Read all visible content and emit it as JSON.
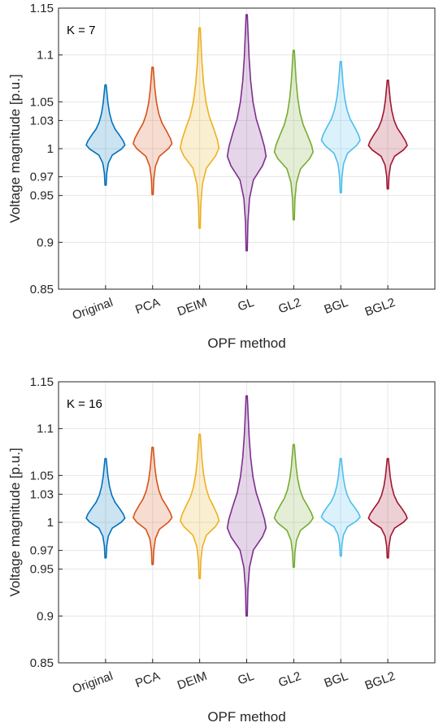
{
  "chart_data": [
    {
      "type": "violin",
      "annotation": "K = 7",
      "xlabel": "OPF method",
      "ylabel": "Voltage magnitude [p.u.]",
      "ylim": [
        0.85,
        1.15
      ],
      "yticks": [
        0.85,
        0.9,
        0.95,
        0.97,
        1,
        1.03,
        1.05,
        1.1,
        1.15
      ],
      "ytick_labels": [
        "0.85",
        "0.9",
        "0.95",
        "0.97",
        "1",
        "1.03",
        "1.05",
        "1.1",
        "1.15"
      ],
      "grid": true,
      "categories": [
        "Original",
        "PCA",
        "DEIM",
        "GL",
        "GL2",
        "BGL",
        "BGL2"
      ],
      "colors": [
        "#0072BD",
        "#D95319",
        "#EDB120",
        "#7E2F8E",
        "#77AC30",
        "#4DBEEE",
        "#A2142F"
      ],
      "series": [
        {
          "values": {
            "min": 0.961,
            "max": 1.068
          }
        },
        {
          "values": {
            "min": 0.951,
            "max": 1.087
          }
        },
        {
          "values": {
            "min": 0.915,
            "max": 1.129
          }
        },
        {
          "values": {
            "min": 0.891,
            "max": 1.143
          }
        },
        {
          "values": {
            "min": 0.924,
            "max": 1.105
          }
        },
        {
          "values": {
            "min": 0.953,
            "max": 1.093
          }
        },
        {
          "values": {
            "min": 0.957,
            "max": 1.073
          }
        }
      ]
    },
    {
      "type": "violin",
      "annotation": "K = 16",
      "xlabel": "OPF method",
      "ylabel": "Voltage magnitude [p.u.]",
      "ylim": [
        0.85,
        1.15
      ],
      "yticks": [
        0.85,
        0.9,
        0.95,
        0.97,
        1,
        1.03,
        1.05,
        1.1,
        1.15
      ],
      "ytick_labels": [
        "0.85",
        "0.9",
        "0.95",
        "0.97",
        "1",
        "1.03",
        "1.05",
        "1.1",
        "1.15"
      ],
      "grid": true,
      "categories": [
        "Original",
        "PCA",
        "DEIM",
        "GL",
        "GL2",
        "BGL",
        "BGL2"
      ],
      "colors": [
        "#0072BD",
        "#D95319",
        "#EDB120",
        "#7E2F8E",
        "#77AC30",
        "#4DBEEE",
        "#A2142F"
      ],
      "series": [
        {
          "values": {
            "min": 0.962,
            "max": 1.068
          }
        },
        {
          "values": {
            "min": 0.955,
            "max": 1.08
          }
        },
        {
          "values": {
            "min": 0.94,
            "max": 1.094
          }
        },
        {
          "values": {
            "min": 0.9,
            "max": 1.135
          }
        },
        {
          "values": {
            "min": 0.952,
            "max": 1.083
          }
        },
        {
          "values": {
            "min": 0.964,
            "max": 1.068
          }
        },
        {
          "values": {
            "min": 0.962,
            "max": 1.068
          }
        }
      ]
    }
  ]
}
